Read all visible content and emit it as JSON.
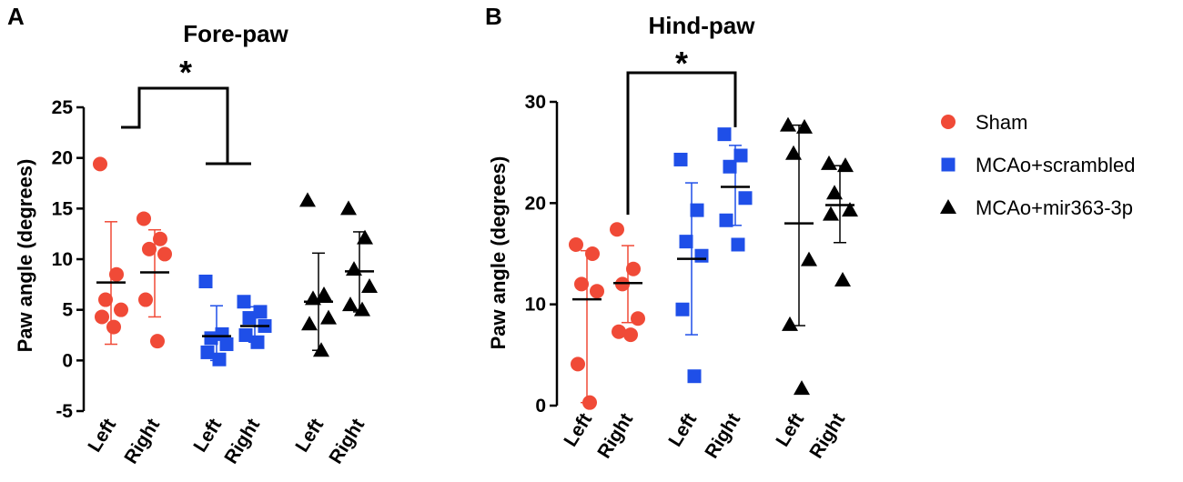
{
  "colors": {
    "sham": "#f04a37",
    "scrambled": "#1f4fe8",
    "mir": "#000000"
  },
  "legend": [
    {
      "label": "Sham",
      "group": "sham",
      "marker": "circle"
    },
    {
      "label": "MCAo+scrambled",
      "group": "scrambled",
      "marker": "square"
    },
    {
      "label": "MCAo+mir363-3p",
      "group": "mir",
      "marker": "triangle"
    }
  ],
  "chart_data": [
    {
      "type": "scatter",
      "panel": "A",
      "title": "Fore-paw",
      "xlabel": "",
      "ylabel": "Paw angle (degrees)",
      "ylim": [
        -5,
        25
      ],
      "yticks": [
        -5,
        0,
        5,
        10,
        15,
        20,
        25
      ],
      "significance": {
        "label": "*",
        "between": [
          "Sham",
          "MCAo+scrambled"
        ]
      },
      "categories": [
        {
          "label": "Left",
          "group": "sham",
          "mean": 7.7,
          "err": [
            1.6,
            13.7
          ],
          "points": [
            19.4,
            8.5,
            6.0,
            5.0,
            4.3,
            3.3
          ]
        },
        {
          "label": "Right",
          "group": "sham",
          "mean": 8.7,
          "err": [
            4.3,
            12.9
          ],
          "points": [
            14.0,
            12.0,
            11.0,
            10.5,
            6.0,
            1.9
          ]
        },
        {
          "label": "Left",
          "group": "scrambled",
          "mean": 2.4,
          "err": [
            0.0,
            5.4
          ],
          "points": [
            7.8,
            2.6,
            2.2,
            1.6,
            0.8,
            0.1
          ]
        },
        {
          "label": "Right",
          "group": "scrambled",
          "mean": 3.4,
          "err": [
            1.8,
            5.3
          ],
          "points": [
            5.8,
            4.8,
            4.2,
            3.4,
            2.5,
            1.8
          ]
        },
        {
          "label": "Left",
          "group": "mir",
          "mean": 5.8,
          "err": [
            1.0,
            10.6
          ],
          "points": [
            15.8,
            6.5,
            6.1,
            4.2,
            3.6,
            1.0
          ]
        },
        {
          "label": "Right",
          "group": "mir",
          "mean": 8.8,
          "err": [
            4.8,
            12.7
          ],
          "points": [
            15.0,
            12.1,
            9.0,
            7.3,
            5.5,
            5.0
          ]
        }
      ]
    },
    {
      "type": "scatter",
      "panel": "B",
      "title": "Hind-paw",
      "xlabel": "",
      "ylabel": "Paw angle (degrees)",
      "ylim": [
        0,
        30
      ],
      "yticks": [
        0,
        10,
        20,
        30
      ],
      "significance": {
        "label": "*",
        "between": [
          "Sham Right",
          "MCAo+scrambled Right"
        ]
      },
      "categories": [
        {
          "label": "Left",
          "group": "sham",
          "mean": 10.5,
          "err": [
            0.3,
            15.3
          ],
          "points": [
            15.9,
            15.0,
            12.0,
            11.3,
            4.1,
            0.3
          ]
        },
        {
          "label": "Right",
          "group": "sham",
          "mean": 12.1,
          "err": [
            8.2,
            15.8
          ],
          "points": [
            17.4,
            13.5,
            12.0,
            8.6,
            7.3,
            7.0
          ]
        },
        {
          "label": "Left",
          "group": "scrambled",
          "mean": 14.5,
          "err": [
            7.0,
            22.0
          ],
          "points": [
            24.3,
            19.3,
            16.2,
            14.8,
            9.5,
            2.9
          ]
        },
        {
          "label": "Right",
          "group": "scrambled",
          "mean": 21.6,
          "err": [
            17.8,
            25.7
          ],
          "points": [
            26.8,
            24.7,
            23.6,
            20.5,
            18.3,
            15.9
          ]
        },
        {
          "label": "Left",
          "group": "mir",
          "mean": 18.0,
          "err": [
            7.9,
            27.7
          ],
          "points": [
            27.7,
            27.5,
            24.9,
            14.4,
            8.0,
            1.7
          ]
        },
        {
          "label": "Right",
          "group": "mir",
          "mean": 19.8,
          "err": [
            16.1,
            23.7
          ],
          "points": [
            23.9,
            23.7,
            21.0,
            19.3,
            18.9,
            12.4
          ]
        }
      ]
    }
  ]
}
